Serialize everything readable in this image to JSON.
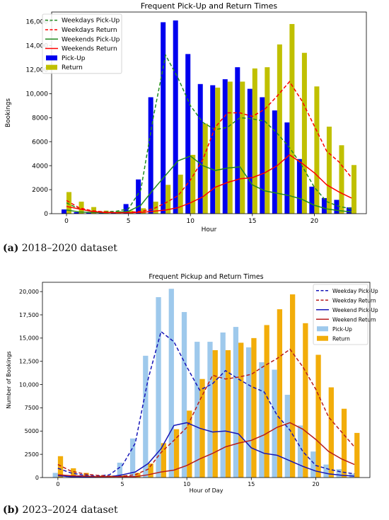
{
  "chart_data": [
    {
      "type": "bar",
      "title": "Frequent Pick-Up and Return Times",
      "xlabel": "Hour",
      "ylabel": "Bookings",
      "xlim": [
        -1.2,
        24.2
      ],
      "ylim": [
        0,
        16800
      ],
      "xticks": [
        0,
        5,
        10,
        15,
        20
      ],
      "yticks": [
        0,
        2000,
        4000,
        6000,
        8000,
        10000,
        12000,
        14000,
        16000
      ],
      "ytick_labels": [
        "0",
        "2000",
        "4000",
        "6000",
        "8000",
        "10,000",
        "12,000",
        "14,000",
        "16,000"
      ],
      "legend_position": "top-left",
      "grid": false,
      "x": [
        0,
        1,
        2,
        3,
        4,
        5,
        6,
        7,
        8,
        9,
        10,
        11,
        12,
        13,
        14,
        15,
        16,
        17,
        18,
        19,
        20,
        21,
        22,
        23
      ],
      "bar_series": [
        {
          "name": "Pick-Up",
          "color": "#0000ee",
          "values": [
            350,
            120,
            80,
            60,
            90,
            800,
            2850,
            9700,
            15950,
            16100,
            13300,
            10800,
            10700,
            11200,
            12200,
            10400,
            9700,
            8600,
            7600,
            4550,
            2250,
            1300,
            1150,
            520
          ]
        },
        {
          "name": "Return",
          "color": "#c0c000",
          "values": [
            1800,
            1000,
            550,
            250,
            200,
            250,
            450,
            1000,
            2400,
            3250,
            4900,
            7500,
            10500,
            11000,
            11000,
            12100,
            12200,
            14100,
            15800,
            13400,
            10600,
            7250,
            5700,
            4050
          ]
        }
      ],
      "line_series": [
        {
          "name": "Weekdays Pick-Up",
          "color": "#228b22",
          "dash": "dashed",
          "values": [
            900,
            400,
            200,
            150,
            200,
            400,
            2000,
            8000,
            13200,
            11300,
            9000,
            7600,
            7000,
            7200,
            8000,
            7900,
            7700,
            6700,
            5500,
            4000,
            2200,
            1000,
            600,
            400
          ]
        },
        {
          "name": "Weekdays Return",
          "color": "#ff0000",
          "dash": "dashed",
          "values": [
            1100,
            500,
            250,
            150,
            100,
            100,
            200,
            400,
            900,
            1500,
            2800,
            4500,
            7200,
            8400,
            8400,
            8100,
            8700,
            9800,
            11000,
            9400,
            7300,
            5200,
            4300,
            3000
          ]
        },
        {
          "name": "Weekends Pick-Up",
          "color": "#228b22",
          "dash": "solid",
          "values": [
            300,
            150,
            100,
            80,
            100,
            200,
            700,
            2000,
            3200,
            4400,
            4800,
            4000,
            3600,
            3800,
            3900,
            2400,
            1900,
            1700,
            1500,
            1200,
            700,
            400,
            250,
            150
          ]
        },
        {
          "name": "Weekends Return",
          "color": "#ff0000",
          "dash": "solid",
          "values": [
            600,
            400,
            200,
            100,
            80,
            80,
            100,
            200,
            300,
            500,
            900,
            1400,
            2200,
            2600,
            2900,
            3000,
            3400,
            4000,
            4900,
            4200,
            3400,
            2400,
            1800,
            1300
          ]
        }
      ]
    },
    {
      "type": "bar",
      "title": "Frequent Pickup and Return Times",
      "xlabel": "Hour of Day",
      "ylabel": "Number of Bookings",
      "xlim": [
        -1.2,
        24.2
      ],
      "ylim": [
        0,
        21000
      ],
      "xticks": [
        0,
        5,
        10,
        15,
        20
      ],
      "yticks": [
        0,
        2500,
        5000,
        7500,
        10000,
        12500,
        15000,
        17500,
        20000
      ],
      "ytick_labels": [
        "0",
        "2500",
        "5000",
        "7500",
        "10,000",
        "12,500",
        "15,000",
        "17,500",
        "20,000"
      ],
      "legend_position": "top-right",
      "grid": false,
      "x": [
        0,
        1,
        2,
        3,
        4,
        5,
        6,
        7,
        8,
        9,
        10,
        11,
        12,
        13,
        14,
        15,
        16,
        17,
        18,
        19,
        20,
        21,
        22,
        23
      ],
      "bar_series": [
        {
          "name": "Pick-Up",
          "color": "#9ec9ec",
          "values": [
            500,
            150,
            100,
            100,
            200,
            1600,
            4200,
            13100,
            19400,
            20300,
            17800,
            14600,
            14600,
            15600,
            16200,
            14000,
            12400,
            11600,
            8900,
            5600,
            2800,
            1400,
            900,
            400
          ]
        },
        {
          "name": "Return",
          "color": "#f2ad0a",
          "values": [
            2300,
            1000,
            500,
            200,
            200,
            250,
            500,
            1500,
            3700,
            5200,
            7200,
            10600,
            13700,
            13700,
            14500,
            15000,
            16400,
            18100,
            19700,
            16600,
            13200,
            9700,
            7400,
            4800
          ]
        }
      ],
      "line_series": [
        {
          "name": "Weekday Pick-Up",
          "color": "#1515b8",
          "dash": "dashed",
          "values": [
            1000,
            500,
            250,
            150,
            300,
            1300,
            3700,
            10600,
            15700,
            14600,
            11900,
            9400,
            10100,
            11500,
            10600,
            9800,
            9200,
            6700,
            5100,
            2800,
            1300,
            900,
            600,
            400
          ]
        },
        {
          "name": "Weekday Return",
          "color": "#b81d1d",
          "dash": "dashed",
          "values": [
            1400,
            700,
            400,
            250,
            150,
            150,
            300,
            900,
            2700,
            4000,
            5400,
            8300,
            11000,
            10600,
            10800,
            11100,
            12000,
            12800,
            13800,
            11900,
            9500,
            6500,
            4900,
            3300
          ]
        },
        {
          "name": "Weekend Pick-Up",
          "color": "#1515b8",
          "dash": "solid",
          "values": [
            200,
            100,
            50,
            50,
            80,
            300,
            600,
            1500,
            3100,
            5600,
            5900,
            5300,
            4900,
            5000,
            4700,
            3200,
            2600,
            2400,
            1800,
            1200,
            700,
            400,
            250,
            150
          ]
        },
        {
          "name": "Weekend Return",
          "color": "#b81d1d",
          "dash": "solid",
          "values": [
            300,
            200,
            150,
            100,
            100,
            100,
            100,
            300,
            600,
            800,
            1300,
            2000,
            2600,
            3300,
            3700,
            4000,
            4600,
            5400,
            5900,
            5200,
            4100,
            2800,
            2000,
            1400
          ]
        }
      ]
    }
  ],
  "captions": [
    {
      "label": "(a)",
      "text": " 2018–2020 dataset"
    },
    {
      "label": "(b)",
      "text": " 2023–2024 dataset"
    }
  ]
}
